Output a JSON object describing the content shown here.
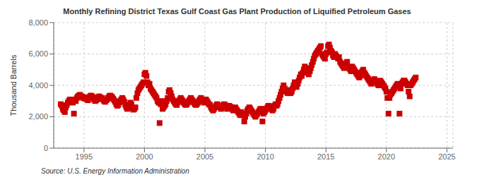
{
  "chart_data": {
    "type": "scatter",
    "title": "Monthly Refining District Texas Gulf Coast Gas Plant Production of Liquified Petroleum Gases",
    "y_label": "Thousand Barrels",
    "annotations": [
      "Source: U.S. Energy Information Administration"
    ],
    "color": "#CC0000",
    "marker": "square",
    "grid": true,
    "xlim": [
      1992.5,
      2025.5
    ],
    "xticks": [
      1995,
      2000,
      2005,
      2010,
      2015,
      2020,
      2025
    ],
    "ylim": [
      0,
      8000
    ],
    "yticks": [
      0,
      {
        "value": 2000,
        "label": "2,000"
      },
      {
        "value": 4000,
        "label": "4,000"
      },
      {
        "value": 6000,
        "label": "6,000"
      },
      {
        "value": 8000,
        "label": "8,000"
      }
    ],
    "x": [
      1993.08,
      1993.17,
      1993.25,
      1993.33,
      1993.42,
      1993.5,
      1993.58,
      1993.67,
      1993.75,
      1993.83,
      1993.92,
      1994.0,
      1994.08,
      1994.17,
      1994.25,
      1994.33,
      1994.42,
      1994.5,
      1994.58,
      1994.67,
      1994.75,
      1994.83,
      1994.92,
      1995.0,
      1995.08,
      1995.17,
      1995.25,
      1995.33,
      1995.42,
      1995.5,
      1995.58,
      1995.67,
      1995.75,
      1995.83,
      1995.92,
      1996.0,
      1996.08,
      1996.17,
      1996.25,
      1996.33,
      1996.42,
      1996.5,
      1996.58,
      1996.67,
      1996.75,
      1996.83,
      1996.92,
      1997.0,
      1997.08,
      1997.17,
      1997.25,
      1997.33,
      1997.42,
      1997.5,
      1997.58,
      1997.67,
      1997.75,
      1997.83,
      1997.92,
      1998.0,
      1998.08,
      1998.17,
      1998.25,
      1998.33,
      1998.42,
      1998.5,
      1998.58,
      1998.67,
      1998.75,
      1998.83,
      1998.92,
      1999.0,
      1999.08,
      1999.17,
      1999.25,
      1999.33,
      1999.42,
      1999.5,
      1999.58,
      1999.67,
      1999.75,
      1999.83,
      1999.92,
      2000.0,
      2000.08,
      2000.17,
      2000.25,
      2000.33,
      2000.42,
      2000.5,
      2000.58,
      2000.67,
      2000.75,
      2000.83,
      2000.92,
      2001.0,
      2001.08,
      2001.17,
      2001.25,
      2001.33,
      2001.42,
      2001.5,
      2001.58,
      2001.67,
      2001.75,
      2001.83,
      2001.92,
      2002.0,
      2002.08,
      2002.17,
      2002.25,
      2002.33,
      2002.42,
      2002.5,
      2002.58,
      2002.67,
      2002.75,
      2002.83,
      2002.92,
      2003.0,
      2003.08,
      2003.17,
      2003.25,
      2003.33,
      2003.42,
      2003.5,
      2003.58,
      2003.67,
      2003.75,
      2003.83,
      2003.92,
      2004.0,
      2004.08,
      2004.17,
      2004.25,
      2004.33,
      2004.42,
      2004.5,
      2004.58,
      2004.67,
      2004.75,
      2004.83,
      2004.92,
      2005.0,
      2005.08,
      2005.17,
      2005.25,
      2005.33,
      2005.42,
      2005.5,
      2005.58,
      2005.67,
      2005.75,
      2005.83,
      2005.92,
      2006.0,
      2006.08,
      2006.17,
      2006.25,
      2006.33,
      2006.42,
      2006.5,
      2006.58,
      2006.67,
      2006.75,
      2006.83,
      2006.92,
      2007.0,
      2007.08,
      2007.17,
      2007.25,
      2007.33,
      2007.42,
      2007.5,
      2007.58,
      2007.67,
      2007.75,
      2007.83,
      2007.92,
      2008.0,
      2008.08,
      2008.17,
      2008.25,
      2008.33,
      2008.42,
      2008.5,
      2008.58,
      2008.67,
      2008.75,
      2008.83,
      2008.92,
      2009.0,
      2009.08,
      2009.17,
      2009.25,
      2009.33,
      2009.42,
      2009.5,
      2009.58,
      2009.67,
      2009.75,
      2009.83,
      2009.92,
      2010.0,
      2010.08,
      2010.17,
      2010.25,
      2010.33,
      2010.42,
      2010.5,
      2010.58,
      2010.67,
      2010.75,
      2010.83,
      2010.92,
      2011.0,
      2011.08,
      2011.17,
      2011.25,
      2011.33,
      2011.42,
      2011.5,
      2011.58,
      2011.67,
      2011.75,
      2011.83,
      2011.92,
      2012.0,
      2012.08,
      2012.17,
      2012.25,
      2012.33,
      2012.42,
      2012.5,
      2012.58,
      2012.67,
      2012.75,
      2012.83,
      2012.92,
      2013.0,
      2013.08,
      2013.17,
      2013.25,
      2013.33,
      2013.42,
      2013.5,
      2013.58,
      2013.67,
      2013.75,
      2013.83,
      2013.92,
      2014.0,
      2014.08,
      2014.17,
      2014.25,
      2014.33,
      2014.42,
      2014.5,
      2014.58,
      2014.67,
      2014.75,
      2014.83,
      2014.92,
      2015.0,
      2015.08,
      2015.17,
      2015.25,
      2015.33,
      2015.42,
      2015.5,
      2015.58,
      2015.67,
      2015.75,
      2015.83,
      2015.92,
      2016.0,
      2016.08,
      2016.17,
      2016.25,
      2016.33,
      2016.42,
      2016.5,
      2016.58,
      2016.67,
      2016.75,
      2016.83,
      2016.92,
      2017.0,
      2017.08,
      2017.17,
      2017.25,
      2017.33,
      2017.42,
      2017.5,
      2017.58,
      2017.67,
      2017.75,
      2017.83,
      2017.92,
      2018.0,
      2018.08,
      2018.17,
      2018.25,
      2018.33,
      2018.42,
      2018.5,
      2018.58,
      2018.67,
      2018.75,
      2018.83,
      2018.92,
      2019.0,
      2019.08,
      2019.17,
      2019.25,
      2019.33,
      2019.42,
      2019.5,
      2019.58,
      2019.67,
      2019.75,
      2019.83,
      2019.92,
      2020.0,
      2020.08,
      2020.17,
      2020.25,
      2020.33,
      2020.42,
      2020.5,
      2020.58,
      2020.67,
      2020.75,
      2020.83,
      2020.92,
      2021.0,
      2021.08,
      2021.17,
      2021.25,
      2021.33,
      2021.42,
      2021.5,
      2021.58,
      2021.67,
      2021.75,
      2021.83,
      2021.92,
      2022.0,
      2022.08,
      2022.17,
      2022.25,
      2022.33,
      2022.42
    ],
    "values": [
      2800,
      2700,
      2500,
      2400,
      2300,
      2600,
      2750,
      2900,
      3000,
      3100,
      3050,
      3000,
      2900,
      2200,
      3100,
      3000,
      3200,
      3300,
      3350,
      3400,
      3300,
      3300,
      3200,
      3250,
      3150,
      3200,
      3100,
      3050,
      3200,
      3300,
      3350,
      3300,
      3250,
      3100,
      3000,
      3050,
      3100,
      3200,
      3300,
      3250,
      3150,
      3200,
      3100,
      3000,
      2950,
      3050,
      3100,
      3200,
      3300,
      3350,
      3300,
      3250,
      3150,
      3050,
      2950,
      2800,
      2700,
      2750,
      2900,
      3000,
      3100,
      3200,
      3100,
      2950,
      2750,
      2600,
      2500,
      2550,
      2700,
      2900,
      2800,
      2600,
      2450,
      2500,
      2600,
      3200,
      3500,
      3700,
      3800,
      3900,
      4000,
      4100,
      4200,
      4700,
      4800,
      4600,
      4200,
      4000,
      4100,
      3800,
      3700,
      3600,
      3500,
      3400,
      3300,
      3200,
      3000,
      2900,
      1600,
      2800,
      3000,
      2500,
      2600,
      2700,
      2800,
      3000,
      3200,
      3600,
      3700,
      3500,
      3300,
      3100,
      3000,
      2900,
      2800,
      2750,
      2900,
      3000,
      3100,
      3200,
      3100,
      3000,
      2900,
      2800,
      2750,
      2800,
      2900,
      3000,
      3100,
      3200,
      3100,
      3000,
      2900,
      2800,
      2750,
      2800,
      2900,
      3000,
      3100,
      3200,
      3100,
      3000,
      2900,
      3000,
      3100,
      3000,
      2900,
      2800,
      2750,
      2600,
      2500,
      2400,
      2500,
      2600,
      2700,
      2800,
      2750,
      2700,
      2600,
      2500,
      2600,
      2700,
      2800,
      2750,
      2600,
      2500,
      2600,
      2700,
      2650,
      2600,
      2500,
      2400,
      2500,
      2600,
      2500,
      2400,
      2300,
      2200,
      2100,
      2300,
      2200,
      2100,
      1700,
      2000,
      2200,
      2400,
      2500,
      2600,
      2500,
      2400,
      2300,
      2200,
      2100,
      2000,
      2100,
      2200,
      2300,
      2400,
      2500,
      2500,
      1700,
      2200,
      2300,
      2400,
      2500,
      2600,
      2700,
      2650,
      2600,
      2500,
      2400,
      2500,
      2700,
      2800,
      2700,
      2800,
      3000,
      3200,
      3400,
      3600,
      3800,
      4000,
      3800,
      3700,
      3600,
      3500,
      3700,
      3600,
      3500,
      3600,
      3800,
      4000,
      4200,
      4100,
      3900,
      4100,
      4300,
      4500,
      4700,
      4600,
      4800,
      5000,
      5200,
      5100,
      4900,
      4800,
      4700,
      4900,
      5100,
      5300,
      5500,
      5700,
      5900,
      6000,
      6100,
      6200,
      6300,
      6400,
      6500,
      6000,
      5900,
      5800,
      5700,
      6000,
      6100,
      6500,
      6600,
      6400,
      6200,
      6100,
      5900,
      5800,
      6000,
      5900,
      5800,
      5700,
      5800,
      5500,
      5400,
      5300,
      5200,
      5100,
      5300,
      5400,
      5500,
      5200,
      5100,
      5000,
      4900,
      5200,
      5100,
      5000,
      4900,
      4800,
      4700,
      4600,
      4500,
      4600,
      4800,
      4900,
      5000,
      4800,
      4700,
      4600,
      4500,
      4400,
      4300,
      4200,
      4100,
      4200,
      4300,
      4400,
      4300,
      4200,
      4100,
      4000,
      4200,
      4300,
      4200,
      4100,
      4000,
      3900,
      3800,
      3600,
      3200,
      2200,
      3200,
      3400,
      3500,
      3600,
      3700,
      3800,
      3900,
      4000,
      4100,
      4000,
      2200,
      3800,
      4100,
      4200,
      4300,
      4300,
      4200,
      4100,
      4000,
      3600,
      3300,
      4000,
      4100,
      4200,
      4300,
      4400,
      4500
    ]
  }
}
